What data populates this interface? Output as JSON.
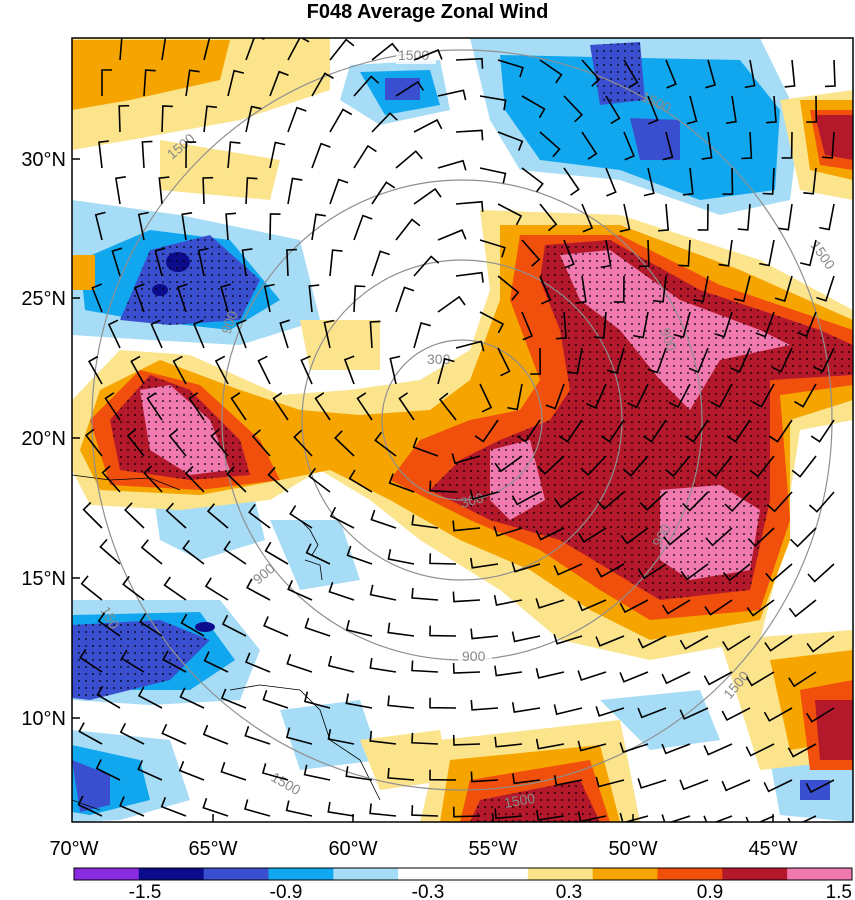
{
  "title": "F048 Average Zonal Wind",
  "colors": {
    "c_m4": "#8a2be2",
    "c_m3": "#0b0b8c",
    "c_m2": "#3a4fd0",
    "c_m1": "#11a7ef",
    "c_m0": "#a6dcf6",
    "c_0": "#ffffff",
    "c_p0": "#fbe48c",
    "c_p1": "#f6a400",
    "c_p2": "#f04f0c",
    "c_p3": "#b3192b",
    "c_p4": "#f07ab0",
    "contour": "#8f8f8f",
    "barb": "#000000"
  },
  "lat_labels": [
    "30°N",
    "25°N",
    "20°N",
    "15°N",
    "10°N"
  ],
  "lon_labels": [
    "70°W",
    "65°W",
    "60°W",
    "55°W",
    "50°W",
    "45°W"
  ],
  "colorbar_labels": [
    "-1.5",
    "-0.9",
    "-0.3",
    "0.3",
    "0.9",
    "1.5"
  ],
  "contour_labels": [
    "1500",
    "1500",
    "1500",
    "1500",
    "1500",
    "1500",
    "1500",
    "300",
    "300",
    "900",
    "900",
    "900",
    "900",
    "900",
    "150"
  ]
}
